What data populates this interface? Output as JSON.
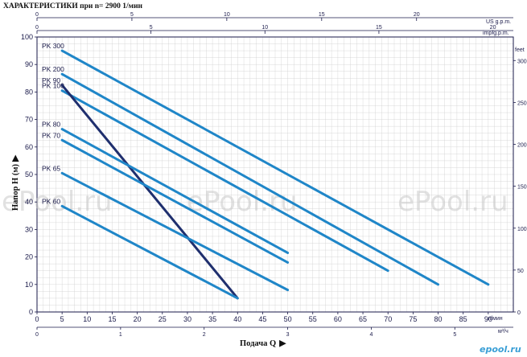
{
  "header": {
    "title": "ХАРАКТЕРИСТИКИ при  n= 2900 1/мин"
  },
  "watermark": {
    "text": "ePool.ru"
  },
  "brand": {
    "text": "epool.ru"
  },
  "chart_data": {
    "type": "line",
    "title": "ХАРАКТЕРИСТИКИ при  n= 2900 1/мин",
    "xlabel": "Подача Q",
    "ylabel": "Напор H (м)",
    "xlim": [
      0,
      95
    ],
    "ylim": [
      0,
      100
    ],
    "grid": true,
    "colors": {
      "series": "#1f86c8",
      "pk90": "#1f2f6e",
      "grid": "#cfcfcf",
      "axis": "#1a1a4a"
    },
    "x_ticks": [
      0,
      5,
      10,
      15,
      20,
      25,
      30,
      35,
      40,
      45,
      50,
      55,
      60,
      65,
      70,
      75,
      80,
      85,
      90
    ],
    "x_unit": "л/мин",
    "y_ticks": [
      0,
      10,
      20,
      30,
      40,
      50,
      60,
      70,
      80,
      90,
      100
    ],
    "top_axis_usgpm": {
      "ticks": [
        0,
        5,
        10,
        15,
        20
      ],
      "label": "US g.p.m."
    },
    "top_axis_impgpm": {
      "ticks": [
        0,
        5,
        10,
        15,
        20
      ],
      "label": "imp.g.p.m."
    },
    "bottom_axis_m3h": {
      "ticks": [
        0,
        1,
        2,
        3,
        4,
        5
      ],
      "label": "м³/ч"
    },
    "right_axis_feet": {
      "ticks": [
        0,
        50,
        100,
        150,
        200,
        250,
        300
      ],
      "label": "feet"
    },
    "series": [
      {
        "name": "PK 300",
        "x": [
          5,
          90
        ],
        "y": [
          95,
          10
        ]
      },
      {
        "name": "PK 200",
        "x": [
          5,
          80
        ],
        "y": [
          86.5,
          10
        ]
      },
      {
        "name": "PK 100",
        "x": [
          5,
          70
        ],
        "y": [
          80.5,
          15
        ]
      },
      {
        "name": "PK 90",
        "x": [
          5,
          40
        ],
        "y": [
          82.5,
          5
        ],
        "dark": true
      },
      {
        "name": "PK 80",
        "x": [
          5,
          50
        ],
        "y": [
          66.5,
          21.5
        ]
      },
      {
        "name": "PK 70",
        "x": [
          5,
          50
        ],
        "y": [
          62.5,
          18
        ]
      },
      {
        "name": "PK 65",
        "x": [
          5,
          50
        ],
        "y": [
          50.5,
          8
        ]
      },
      {
        "name": "PK 60",
        "x": [
          5,
          40
        ],
        "y": [
          38.5,
          5
        ]
      }
    ]
  }
}
